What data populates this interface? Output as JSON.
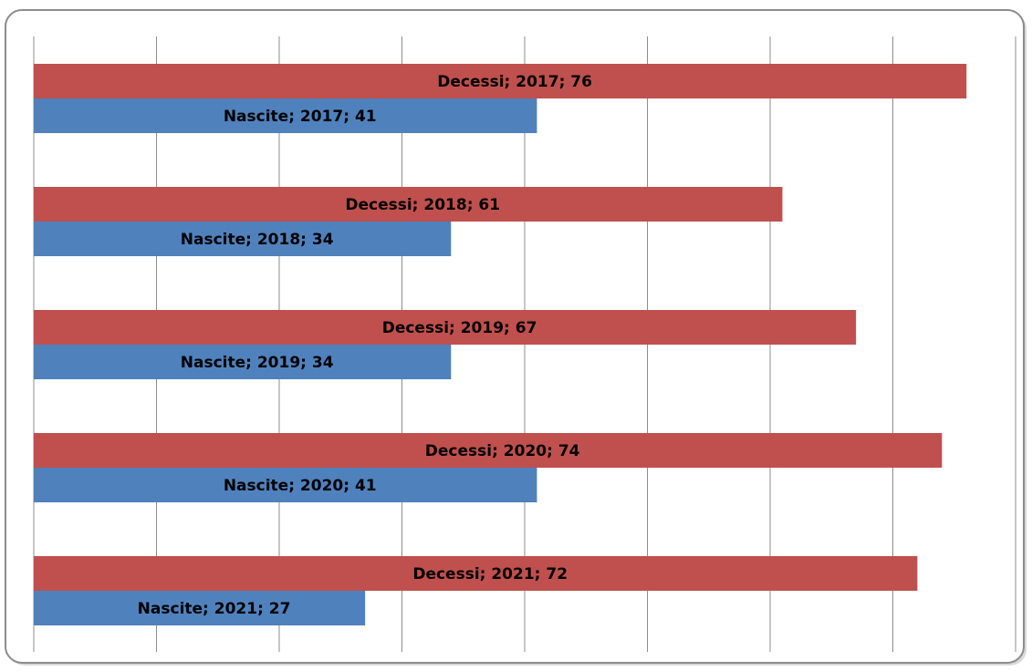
{
  "chart_data": {
    "type": "barh",
    "series": [
      {
        "name": "Decessi",
        "color": "#c0504d",
        "values": [
          76,
          61,
          67,
          74,
          72
        ],
        "value_labels": [
          "Decessi; 2017; 76",
          "Decessi; 2018; 61",
          "Decessi; 2019; 67",
          "Decessi; 2020; 74",
          "Decessi; 2021; 72"
        ]
      },
      {
        "name": "Nascite",
        "color": "#4f81bd",
        "values": [
          41,
          34,
          34,
          41,
          27
        ],
        "value_labels": [
          "Nascite; 2017; 41",
          "Nascite; 2018; 34",
          "Nascite; 2019; 34",
          "Nascite; 2020; 41",
          "Nascite; 2021; 27"
        ]
      }
    ],
    "xlim": [
      0,
      80
    ],
    "xticks": [
      0,
      10,
      20,
      30,
      40,
      50,
      60,
      70,
      80
    ],
    "grid": true
  }
}
